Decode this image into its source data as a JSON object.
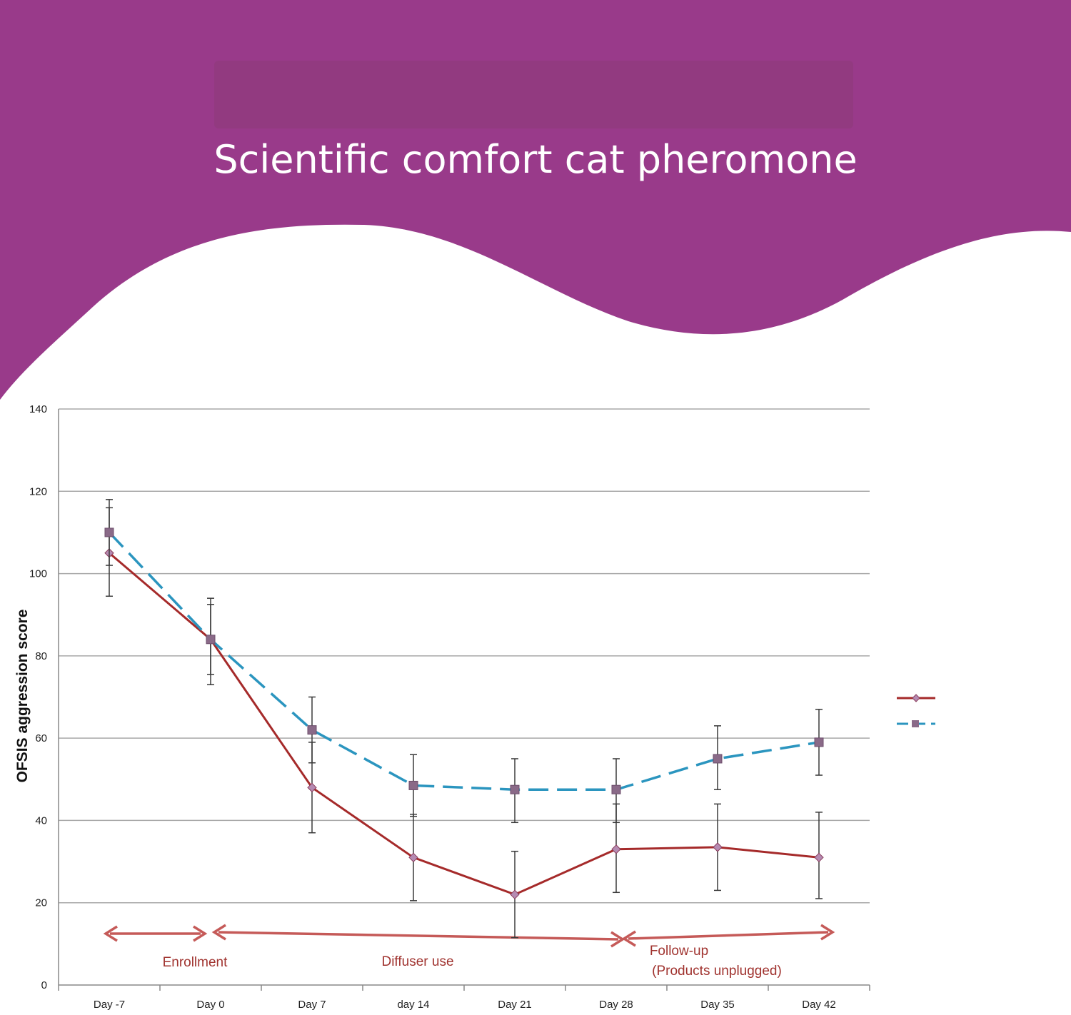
{
  "header": {
    "title": "Scientific comfort cat pheromone",
    "background_color": "#993a8a",
    "blurred_bar_color": "#8c3a78"
  },
  "chart_data": {
    "type": "line",
    "title": "",
    "xlabel": "",
    "ylabel": "OFSIS aggression score",
    "categories": [
      "Day -7",
      "Day 0",
      "Day 7",
      "day 14",
      "Day 21",
      "Day 28",
      "Day 35",
      "Day 42"
    ],
    "ylim": [
      0,
      140
    ],
    "yticks": [
      0,
      20,
      40,
      60,
      80,
      100,
      120,
      140
    ],
    "grid": true,
    "legend_position": "right",
    "series": [
      {
        "name": "",
        "color": "#a52a2a",
        "marker": "diamond",
        "dash": "solid",
        "values": [
          105,
          84,
          48,
          31,
          22,
          33,
          33.5,
          31
        ],
        "error_low": [
          94.5,
          73,
          37,
          20.5,
          11.5,
          22.5,
          23,
          21
        ],
        "error_high": [
          116,
          94,
          59,
          41.5,
          32.5,
          44,
          44,
          42
        ]
      },
      {
        "name": "",
        "color": "#2b95bf",
        "marker": "square",
        "dash": "dashed",
        "values": [
          110,
          84,
          62,
          48.5,
          47.5,
          47.5,
          55,
          59
        ],
        "error_low": [
          102,
          75.5,
          54,
          41,
          39.5,
          39.5,
          47.5,
          51
        ],
        "error_high": [
          118,
          92.5,
          70,
          56,
          55,
          55,
          63,
          67
        ]
      }
    ],
    "annotations": [
      {
        "text": "Enrollment",
        "from": "Day -7",
        "to": "Day 0"
      },
      {
        "text": "Diffuser use",
        "from": "Day 0",
        "to": "Day 28"
      },
      {
        "text": "Follow-up",
        "from": "Day 28",
        "to": "Day 42"
      },
      {
        "text": "(Products unplugged)",
        "from": "Day 28",
        "to": "Day 42"
      }
    ]
  }
}
